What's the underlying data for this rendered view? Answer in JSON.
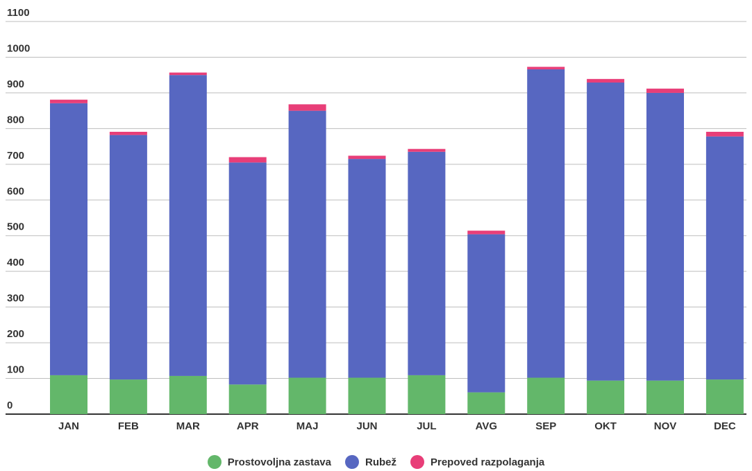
{
  "chart_data": {
    "type": "bar",
    "stacked": true,
    "categories": [
      "JAN",
      "FEB",
      "MAR",
      "APR",
      "MAJ",
      "JUN",
      "JUL",
      "AVG",
      "SEP",
      "OKT",
      "NOV",
      "DEC"
    ],
    "series": [
      {
        "name": "Prostovoljna zastava",
        "color": "#63b76a",
        "values": [
          109,
          97,
          107,
          83,
          102,
          102,
          109,
          61,
          102,
          94,
          94,
          97
        ]
      },
      {
        "name": "Rubež",
        "color": "#5767c1",
        "values": [
          762,
          685,
          843,
          622,
          748,
          613,
          626,
          443,
          864,
          835,
          806,
          681
        ]
      },
      {
        "name": "Prepoved razpolaganja",
        "color": "#e83e78",
        "values": [
          10,
          9,
          7,
          15,
          18,
          9,
          8,
          10,
          7,
          10,
          12,
          13
        ]
      }
    ],
    "yticks": [
      0,
      100,
      200,
      300,
      400,
      500,
      600,
      700,
      800,
      900,
      1000,
      1100
    ],
    "ylim": [
      0,
      1100
    ],
    "grid": true,
    "legend_position": "bottom"
  }
}
